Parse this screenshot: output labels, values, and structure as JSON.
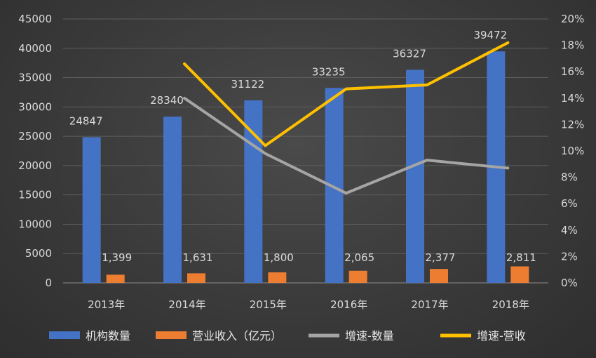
{
  "chart_data": {
    "type": "bar",
    "categories": [
      "2013年",
      "2014年",
      "2015年",
      "2016年",
      "2017年",
      "2018年"
    ],
    "series": [
      {
        "name": "机构数量",
        "axis": "left",
        "kind": "bar",
        "color": "#4472c4",
        "values": [
          24847,
          28340,
          31122,
          33235,
          36327,
          39472
        ],
        "labels": [
          "24847",
          "28340",
          "31122",
          "33235",
          "36327",
          "39472"
        ]
      },
      {
        "name": "营业收入（亿元）",
        "axis": "left",
        "kind": "bar",
        "color": "#ed7d31",
        "values": [
          1399,
          1631,
          1800,
          2065,
          2377,
          2811
        ],
        "labels": [
          "1,399",
          "1,631",
          "1,800",
          "2,065",
          "2,377",
          "2,811"
        ]
      },
      {
        "name": "增速-数量",
        "axis": "right",
        "kind": "line",
        "color": "#a5a5a5",
        "values": [
          null,
          14.0,
          9.8,
          6.8,
          9.3,
          8.7
        ]
      },
      {
        "name": "增速-营收",
        "axis": "right",
        "kind": "line",
        "color": "#ffc000",
        "values": [
          null,
          16.6,
          10.4,
          14.7,
          15.0,
          18.2
        ]
      }
    ],
    "y_left": {
      "min": 0,
      "max": 45000,
      "step": 5000,
      "ticks": [
        "0",
        "5000",
        "10000",
        "15000",
        "20000",
        "25000",
        "30000",
        "35000",
        "40000",
        "45000"
      ]
    },
    "y_right": {
      "min": 0,
      "max": 20,
      "step": 2,
      "ticks": [
        "0%",
        "2%",
        "4%",
        "6%",
        "8%",
        "10%",
        "12%",
        "14%",
        "16%",
        "18%",
        "20%"
      ]
    },
    "grid": true,
    "legend_position": "bottom",
    "title": "",
    "xlabel": "",
    "ylabel": ""
  }
}
